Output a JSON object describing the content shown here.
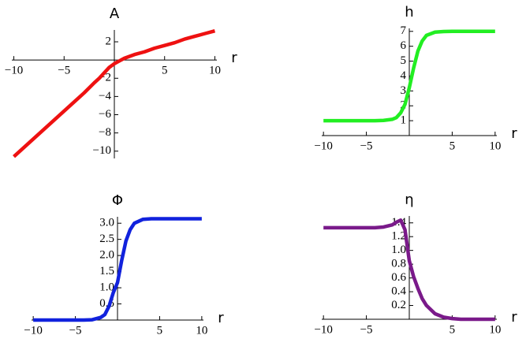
{
  "chart_data": [
    {
      "type": "line",
      "ylabel": "A",
      "xlabel": "r",
      "color": "#ee1111",
      "x": [
        -10,
        -8,
        -6,
        -4,
        -3,
        -2,
        -1.5,
        -1,
        -0.5,
        0,
        0.5,
        1,
        2,
        3,
        4,
        5,
        6,
        7,
        8,
        9,
        10
      ],
      "values": [
        -10.6,
        -8.6,
        -6.6,
        -4.6,
        -3.6,
        -2.5,
        -2.0,
        -1.4,
        -0.8,
        -0.4,
        -0.1,
        0.2,
        0.6,
        0.9,
        1.3,
        1.6,
        1.9,
        2.3,
        2.6,
        2.9,
        3.2
      ],
      "xlim": [
        -10.2,
        10.2
      ],
      "ylim": [
        -10.8,
        3.3
      ],
      "xticks": [
        {
          "value": -10,
          "label": "−10"
        },
        {
          "value": -5,
          "label": "−5"
        },
        5,
        10
      ],
      "yticks": [
        2,
        {
          "value": -2,
          "label": "−2"
        },
        {
          "value": -4,
          "label": "−4"
        },
        {
          "value": -6,
          "label": "−6"
        },
        {
          "value": -8,
          "label": "−8"
        },
        {
          "value": -10,
          "label": "−10"
        }
      ]
    },
    {
      "type": "line",
      "ylabel": "h",
      "xlabel": "r",
      "color": "#22ee22",
      "x": [
        -10,
        -8,
        -6,
        -4,
        -3,
        -2,
        -1.5,
        -1,
        -0.5,
        0,
        0.5,
        1,
        1.5,
        2,
        3,
        4,
        5,
        6,
        8,
        10
      ],
      "values": [
        1.0,
        1.0,
        1.0,
        1.0,
        1.02,
        1.09,
        1.21,
        1.53,
        2.1,
        3.21,
        4.53,
        5.67,
        6.35,
        6.73,
        6.95,
        6.99,
        7.0,
        7.0,
        7.0,
        7.0
      ],
      "xlim": [
        -10.2,
        10.2
      ],
      "ylim": [
        0,
        7.2
      ],
      "xticks": [
        {
          "value": -10,
          "label": "−10"
        },
        {
          "value": -5,
          "label": "−5"
        },
        5,
        10
      ],
      "yticks": [
        1,
        2,
        3,
        4,
        5,
        6,
        7
      ]
    },
    {
      "type": "line",
      "ylabel": "Φ",
      "xlabel": "r",
      "color": "#1122dd",
      "x": [
        -10,
        -8,
        -6,
        -4,
        -3,
        -2,
        -1.5,
        -1,
        -0.5,
        0,
        0.5,
        1,
        1.5,
        2,
        3,
        4,
        5,
        6,
        8,
        10
      ],
      "values": [
        0,
        0,
        0,
        0,
        0.01,
        0.08,
        0.17,
        0.43,
        0.85,
        1.16,
        1.85,
        2.45,
        2.8,
        3.0,
        3.12,
        3.14,
        3.14,
        3.14,
        3.14,
        3.14
      ],
      "xlim": [
        -10.2,
        10.2
      ],
      "ylim": [
        0,
        3.2
      ],
      "xticks": [
        {
          "value": -10,
          "label": "−10"
        },
        {
          "value": -5,
          "label": "−5"
        },
        5,
        10
      ],
      "yticks": [
        0.5,
        {
          "value": 1,
          "label": "1.0"
        },
        1.5,
        {
          "value": 2,
          "label": "2.0"
        },
        2.5,
        {
          "value": 3,
          "label": "3.0"
        }
      ]
    },
    {
      "type": "line",
      "ylabel": "η",
      "xlabel": "r",
      "color": "#7a1a8a",
      "x": [
        -10,
        -8,
        -6,
        -4,
        -3,
        -2,
        -1.5,
        -1,
        -0.5,
        0,
        0.5,
        1,
        1.5,
        2,
        3,
        4,
        5,
        6,
        8,
        10
      ],
      "values": [
        1.33,
        1.33,
        1.33,
        1.33,
        1.34,
        1.37,
        1.41,
        1.44,
        1.3,
        0.85,
        0.62,
        0.45,
        0.3,
        0.2,
        0.08,
        0.03,
        0.01,
        0,
        0,
        0
      ],
      "xlim": [
        -10.2,
        10.2
      ],
      "ylim": [
        0,
        1.5
      ],
      "xticks": [
        {
          "value": -10,
          "label": "−10"
        },
        {
          "value": -5,
          "label": "−5"
        },
        5,
        10
      ],
      "yticks": [
        0.2,
        0.4,
        0.6,
        0.8,
        {
          "value": 1,
          "label": "1.0"
        },
        1.2,
        1.4
      ]
    }
  ]
}
